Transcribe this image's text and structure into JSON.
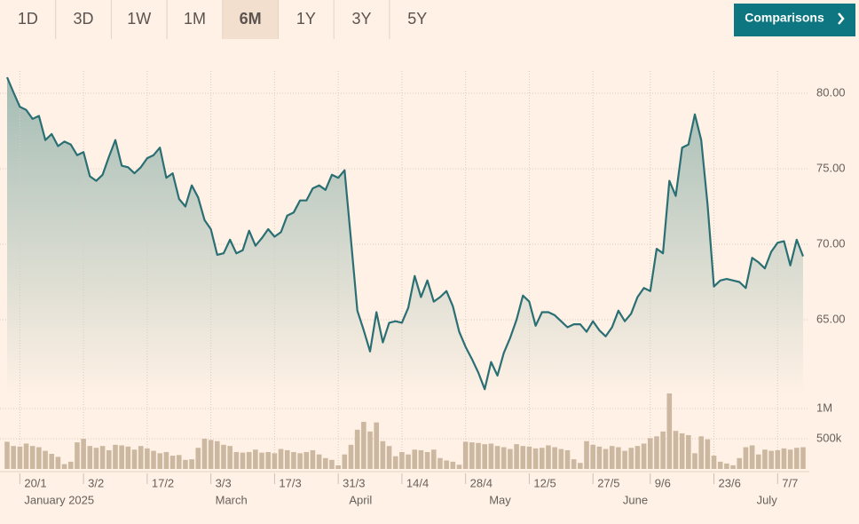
{
  "tabs": [
    "1D",
    "3D",
    "1W",
    "1M",
    "6M",
    "1Y",
    "3Y",
    "5Y"
  ],
  "selected_tab": "6M",
  "button": "Comparisons",
  "chart_data": [
    {
      "type": "line",
      "color": "#2a6f73",
      "grid": true,
      "ylim": [
        60,
        82
      ],
      "yticks": [
        {
          "value": 65,
          "label": "65.00"
        },
        {
          "value": 70,
          "label": "70.00"
        },
        {
          "value": 75,
          "label": "75.00"
        },
        {
          "value": 80,
          "label": "80.00"
        }
      ],
      "categories": [
        null,
        null,
        "20/1",
        null,
        null,
        null,
        null,
        null,
        null,
        null,
        null,
        null,
        "3/2",
        null,
        null,
        null,
        null,
        null,
        null,
        null,
        null,
        null,
        "17/2",
        null,
        null,
        null,
        null,
        null,
        null,
        null,
        null,
        null,
        "3/3",
        null,
        null,
        null,
        null,
        null,
        null,
        null,
        null,
        null,
        "17/3",
        null,
        null,
        null,
        null,
        null,
        null,
        null,
        null,
        null,
        "31/3",
        null,
        null,
        null,
        null,
        null,
        null,
        null,
        null,
        null,
        "14/4",
        null,
        null,
        null,
        null,
        null,
        null,
        null,
        null,
        null,
        "28/4",
        null,
        null,
        null,
        null,
        null,
        null,
        null,
        null,
        null,
        "12/5",
        null,
        null,
        null,
        null,
        null,
        null,
        null,
        null,
        null,
        "27/5",
        null,
        null,
        null,
        null,
        null,
        null,
        null,
        null,
        "9/6",
        null,
        null,
        null,
        null,
        null,
        null,
        null,
        null,
        null,
        "23/6",
        null,
        null,
        null,
        null,
        null,
        null,
        null,
        null,
        null,
        "7/7",
        null,
        null,
        null,
        null
      ],
      "month_labels": [
        null,
        null,
        "January 2025",
        null,
        null,
        null,
        null,
        null,
        null,
        null,
        null,
        null,
        null,
        null,
        null,
        null,
        null,
        null,
        null,
        null,
        null,
        null,
        null,
        null,
        null,
        null,
        null,
        null,
        null,
        null,
        null,
        null,
        "March",
        null,
        null,
        null,
        null,
        null,
        null,
        null,
        null,
        null,
        null,
        null,
        null,
        null,
        null,
        null,
        null,
        null,
        null,
        null,
        null,
        "April",
        null,
        null,
        null,
        null,
        null,
        null,
        null,
        null,
        null,
        null,
        null,
        null,
        null,
        null,
        null,
        null,
        null,
        null,
        null,
        null,
        null,
        "May",
        null,
        null,
        null,
        null,
        null,
        null,
        null,
        null,
        null,
        null,
        null,
        null,
        null,
        null,
        null,
        null,
        null,
        null,
        null,
        null,
        "June",
        null,
        null,
        null,
        null,
        null,
        null,
        null,
        null,
        null,
        null,
        null,
        null,
        null,
        null,
        null,
        null,
        null,
        null,
        null,
        null,
        "July",
        null,
        null,
        null,
        null,
        null,
        null,
        null,
        null
      ],
      "values": [
        81.06,
        80.06,
        79.1,
        78.9,
        78.3,
        78.5,
        76.9,
        77.3,
        76.5,
        76.8,
        76.6,
        75.9,
        76.1,
        74.5,
        74.2,
        74.6,
        75.8,
        76.9,
        75.2,
        75.1,
        74.7,
        75.1,
        75.7,
        75.9,
        76.4,
        74.4,
        74.7,
        73.0,
        72.5,
        73.9,
        73.1,
        71.6,
        71.0,
        69.3,
        69.4,
        70.3,
        69.4,
        69.6,
        70.9,
        69.9,
        70.4,
        71.0,
        70.5,
        70.8,
        71.9,
        72.1,
        72.9,
        72.9,
        73.7,
        73.9,
        73.6,
        74.6,
        74.4,
        74.9,
        70.3,
        65.6,
        64.3,
        62.9,
        65.5,
        63.5,
        64.8,
        64.9,
        64.8,
        65.8,
        67.9,
        66.5,
        67.6,
        66.2,
        66.5,
        66.9,
        65.9,
        64.2,
        63.2,
        62.4,
        61.5,
        60.4,
        62.2,
        61.3,
        62.8,
        63.8,
        65.0,
        66.6,
        66.2,
        64.6,
        65.5,
        65.5,
        65.3,
        64.9,
        64.5,
        64.7,
        64.7,
        64.2,
        64.9,
        64.3,
        63.9,
        64.5,
        65.6,
        64.9,
        65.4,
        66.5,
        67.1,
        66.9,
        69.7,
        69.4,
        74.2,
        73.2,
        76.4,
        76.6,
        78.6,
        76.9,
        72.6,
        67.2,
        67.6,
        67.7,
        67.6,
        67.5,
        67.1,
        69.1,
        68.8,
        68.4,
        69.5,
        70.1,
        70.2,
        68.6,
        70.3,
        69.2
      ]
    },
    {
      "type": "bar",
      "color": "#ccb8a1",
      "grid": true,
      "ylim": [
        0,
        1250000
      ],
      "yticks": [
        {
          "value": 500000,
          "label": "500k"
        },
        {
          "value": 1000000,
          "label": "1M"
        }
      ],
      "values": [
        450000,
        380000,
        370000,
        420000,
        380000,
        360000,
        300000,
        250000,
        200000,
        80000,
        120000,
        440000,
        500000,
        380000,
        350000,
        380000,
        310000,
        400000,
        390000,
        370000,
        320000,
        380000,
        340000,
        300000,
        260000,
        280000,
        220000,
        230000,
        150000,
        160000,
        350000,
        500000,
        480000,
        460000,
        400000,
        380000,
        280000,
        270000,
        280000,
        320000,
        270000,
        280000,
        260000,
        330000,
        310000,
        280000,
        260000,
        280000,
        310000,
        240000,
        180000,
        150000,
        60000,
        240000,
        400000,
        650000,
        780000,
        620000,
        770000,
        460000,
        380000,
        210000,
        280000,
        240000,
        320000,
        310000,
        280000,
        320000,
        180000,
        140000,
        120000,
        70000,
        450000,
        440000,
        430000,
        410000,
        420000,
        380000,
        360000,
        330000,
        410000,
        380000,
        370000,
        340000,
        350000,
        390000,
        360000,
        330000,
        310000,
        160000,
        100000,
        460000,
        400000,
        370000,
        330000,
        380000,
        360000,
        300000,
        350000,
        380000,
        420000,
        510000,
        540000,
        620000,
        1250000,
        630000,
        590000,
        560000,
        260000,
        540000,
        490000,
        220000,
        120000,
        90000,
        60000,
        180000,
        360000,
        390000,
        240000,
        320000,
        300000,
        310000,
        340000,
        320000,
        350000,
        360000
      ]
    }
  ]
}
